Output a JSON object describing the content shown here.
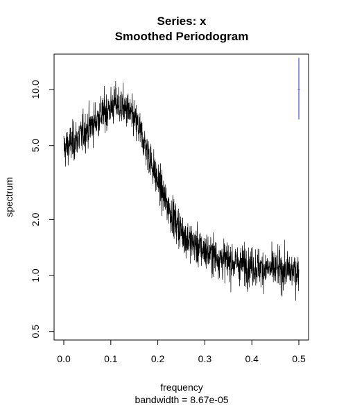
{
  "chart_data": {
    "type": "line",
    "title": "Series: x",
    "subtitle": "Smoothed Periodogram",
    "xlabel": "frequency",
    "xlabel_sub": "bandwidth = 8.67e-05",
    "ylabel": "spectrum",
    "y_scale": "log",
    "xlim": [
      0.0,
      0.5
    ],
    "ylim": [
      0.45,
      15.5
    ],
    "x_ticks": [
      0.0,
      0.1,
      0.2,
      0.3,
      0.4,
      0.5
    ],
    "x_tick_labels": [
      "0.0",
      "0.1",
      "0.2",
      "0.3",
      "0.4",
      "0.5"
    ],
    "y_ticks": [
      0.5,
      1.0,
      2.0,
      5.0,
      10.0
    ],
    "y_tick_labels": [
      "0.5",
      "1.0",
      "2.0",
      "5.0",
      "10.0"
    ],
    "series_color": "#000000",
    "grid": false,
    "legend": "none",
    "series": [
      {
        "x": [
          0.0,
          0.02,
          0.04,
          0.06,
          0.08,
          0.1,
          0.11,
          0.12,
          0.14,
          0.16,
          0.18,
          0.2,
          0.22,
          0.24,
          0.26,
          0.28,
          0.3,
          0.32,
          0.34,
          0.36,
          0.38,
          0.4,
          0.42,
          0.44,
          0.46,
          0.48,
          0.5
        ],
        "y": [
          4.8,
          5.2,
          5.8,
          6.5,
          7.3,
          8.0,
          8.4,
          8.2,
          7.5,
          6.2,
          4.5,
          3.2,
          2.4,
          1.9,
          1.6,
          1.45,
          1.35,
          1.28,
          1.22,
          1.18,
          1.15,
          1.12,
          1.1,
          1.08,
          1.07,
          1.06,
          1.05
        ]
      }
    ],
    "confidence_bar": {
      "x": 0.5,
      "center": 10.0,
      "low": 6.9,
      "high": 14.8,
      "color": "#5a5ae6"
    }
  }
}
